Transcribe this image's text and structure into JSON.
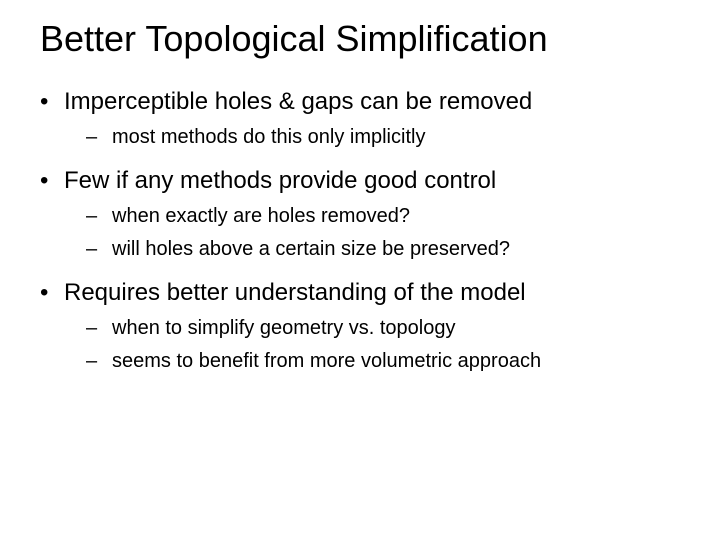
{
  "title": "Better Topological Simplification",
  "bullets": [
    {
      "text": "Imperceptible holes & gaps can be removed",
      "sub": [
        "most methods do this only implicitly"
      ]
    },
    {
      "text": "Few if any methods provide good control",
      "sub": [
        "when exactly are holes removed?",
        "will holes above a certain size be preserved?"
      ]
    },
    {
      "text": "Requires better understanding of the model",
      "sub": [
        "when to simplify geometry vs. topology",
        "seems to benefit from more volumetric approach"
      ]
    }
  ],
  "style": {
    "background_color": "#ffffff",
    "text_color": "#000000",
    "title_fontsize": 36,
    "bullet_fontsize": 24,
    "subbullet_fontsize": 20,
    "font_family": "Arial"
  }
}
